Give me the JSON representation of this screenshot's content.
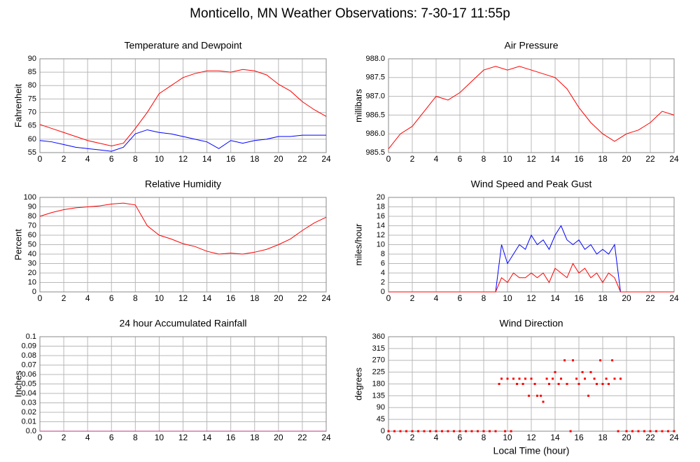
{
  "title": "Monticello, MN Weather Observations: 7-30-17 11:55p",
  "chart_data": [
    {
      "type": "line",
      "title": "Temperature and Dewpoint",
      "ylabel": "Fahrenheit",
      "x": [
        0,
        1,
        2,
        3,
        4,
        5,
        6,
        7,
        8,
        9,
        10,
        11,
        12,
        13,
        14,
        15,
        16,
        17,
        18,
        19,
        20,
        21,
        22,
        23,
        24
      ],
      "series": [
        {
          "color": "#ff0000",
          "values": [
            65.5,
            64,
            62.5,
            61,
            59.5,
            58.5,
            57.5,
            58.5,
            64,
            70,
            77,
            80,
            83,
            84.5,
            85.5,
            85.5,
            85,
            86,
            85.5,
            84,
            80.5,
            78,
            74,
            71,
            68.5
          ]
        },
        {
          "color": "#0000ff",
          "values": [
            59.5,
            59,
            58,
            57,
            56.5,
            56,
            55.5,
            57,
            62,
            63.5,
            62.5,
            62,
            61,
            60,
            59,
            56.5,
            59.5,
            58.5,
            59.5,
            60,
            61,
            61,
            61.5,
            61.5,
            61.5
          ]
        }
      ],
      "xlim": [
        0,
        24
      ],
      "xticks": [
        0,
        2,
        4,
        6,
        8,
        10,
        12,
        14,
        16,
        18,
        20,
        22,
        24
      ],
      "ylim": [
        55,
        90
      ],
      "yticks": [
        55,
        60,
        65,
        70,
        75,
        80,
        85,
        90
      ],
      "grid": true
    },
    {
      "type": "line",
      "title": "Air Pressure",
      "ylabel": "millibars",
      "x": [
        0,
        1,
        2,
        3,
        4,
        5,
        6,
        7,
        8,
        9,
        10,
        11,
        12,
        13,
        14,
        15,
        16,
        17,
        18,
        19,
        20,
        21,
        22,
        23,
        24
      ],
      "series": [
        {
          "color": "#ff0000",
          "values": [
            985.6,
            986.0,
            986.2,
            986.6,
            987.0,
            986.9,
            987.1,
            987.4,
            987.7,
            987.8,
            987.7,
            987.8,
            987.7,
            987.6,
            987.5,
            987.2,
            986.7,
            986.3,
            986.0,
            985.8,
            986.0,
            986.1,
            986.3,
            986.6,
            986.5
          ]
        }
      ],
      "xlim": [
        0,
        24
      ],
      "xticks": [
        0,
        2,
        4,
        6,
        8,
        10,
        12,
        14,
        16,
        18,
        20,
        22,
        24
      ],
      "ylim": [
        985.5,
        988
      ],
      "yticks": [
        985.5,
        {
          "value": 986,
          "label": "986.0"
        },
        986.5,
        {
          "value": 987,
          "label": "987.0"
        },
        987.5,
        {
          "value": 988,
          "label": "988.0"
        }
      ],
      "grid": true
    },
    {
      "type": "line",
      "title": "Relative Humidity",
      "ylabel": "Percent",
      "x": [
        0,
        1,
        2,
        3,
        4,
        5,
        6,
        7,
        8,
        9,
        10,
        11,
        12,
        13,
        14,
        15,
        16,
        17,
        18,
        19,
        20,
        21,
        22,
        23,
        24
      ],
      "series": [
        {
          "color": "#ff0000",
          "values": [
            80,
            84,
            87,
            89,
            90,
            91,
            93,
            94,
            92,
            70,
            60,
            56,
            51,
            48,
            43,
            40,
            41,
            40,
            42,
            45,
            50,
            56,
            65,
            73,
            79
          ]
        }
      ],
      "xlim": [
        0,
        24
      ],
      "xticks": [
        0,
        2,
        4,
        6,
        8,
        10,
        12,
        14,
        16,
        18,
        20,
        22,
        24
      ],
      "ylim": [
        0,
        100
      ],
      "yticks": [
        0,
        10,
        20,
        30,
        40,
        50,
        60,
        70,
        80,
        90,
        100
      ],
      "grid": true
    },
    {
      "type": "line",
      "title": "Wind Speed and Peak Gust",
      "ylabel": "miles/hour",
      "x": [
        0,
        9,
        9.5,
        10,
        10.5,
        11,
        11.5,
        12,
        12.5,
        13,
        13.5,
        14,
        14.5,
        15,
        15.5,
        16,
        16.5,
        17,
        17.5,
        18,
        18.5,
        19,
        19.5,
        20,
        24
      ],
      "series": [
        {
          "color": "#0000ff",
          "values": [
            0,
            0,
            10,
            6,
            8,
            10,
            9,
            12,
            10,
            11,
            9,
            12,
            14,
            11,
            10,
            11,
            9,
            10,
            8,
            9,
            8,
            10,
            0,
            0,
            0
          ]
        },
        {
          "color": "#ff0000",
          "values": [
            0,
            0,
            3,
            2,
            4,
            3,
            3,
            4,
            3,
            4,
            2,
            5,
            4,
            3,
            6,
            4,
            5,
            3,
            4,
            2,
            4,
            3,
            0,
            0,
            0
          ]
        }
      ],
      "xlim": [
        0,
        24
      ],
      "xticks": [
        0,
        2,
        4,
        6,
        8,
        10,
        12,
        14,
        16,
        18,
        20,
        22,
        24
      ],
      "ylim": [
        0,
        20
      ],
      "yticks": [
        0,
        2,
        4,
        6,
        8,
        10,
        12,
        14,
        16,
        18,
        20
      ],
      "grid": true
    },
    {
      "type": "line",
      "title": "24 hour Accumulated Rainfall",
      "ylabel": "Inches",
      "x": [
        0,
        24
      ],
      "series": [
        {
          "color": "#c03080",
          "values": [
            0,
            0
          ]
        }
      ],
      "xlim": [
        0,
        24
      ],
      "xticks": [
        0,
        2,
        4,
        6,
        8,
        10,
        12,
        14,
        16,
        18,
        20,
        22,
        24
      ],
      "ylim": [
        0,
        0.1
      ],
      "yticks": [
        {
          "value": 0,
          "label": "0.0"
        },
        0.01,
        0.02,
        0.03,
        0.04,
        0.05,
        0.06,
        0.07,
        0.08,
        0.09,
        0.1
      ],
      "grid": true
    },
    {
      "type": "scatter",
      "title": "Wind Direction",
      "ylabel": "degrees",
      "xlabel": "Local Time (hour)",
      "x": [
        0,
        0.5,
        1,
        1.5,
        2,
        2.5,
        3,
        3.5,
        4,
        4.5,
        5,
        5.5,
        6,
        6.5,
        7,
        7.5,
        8,
        8.5,
        9,
        9.3,
        9.5,
        9.8,
        10,
        10.3,
        10.5,
        10.8,
        11,
        11.3,
        11.5,
        11.8,
        12,
        12.3,
        12.5,
        12.8,
        13,
        13.3,
        13.5,
        13.8,
        14,
        14.3,
        14.5,
        14.8,
        15,
        15.3,
        15.5,
        15.8,
        16,
        16.3,
        16.5,
        16.8,
        17,
        17.3,
        17.5,
        17.8,
        18,
        18.3,
        18.5,
        18.8,
        19,
        19.3,
        19.5,
        20,
        20.5,
        21,
        21.5,
        22,
        22.5,
        23,
        23.5,
        24
      ],
      "series": [
        {
          "color": "#ff0000",
          "values": [
            0,
            0,
            0,
            0,
            0,
            0,
            0,
            0,
            0,
            0,
            0,
            0,
            0,
            0,
            0,
            0,
            0,
            0,
            0,
            180,
            200,
            0,
            200,
            0,
            200,
            180,
            200,
            180,
            200,
            135,
            200,
            180,
            135,
            135,
            112,
            200,
            180,
            200,
            225,
            180,
            200,
            270,
            180,
            0,
            270,
            200,
            180,
            225,
            200,
            135,
            225,
            200,
            180,
            270,
            180,
            200,
            180,
            270,
            200,
            0,
            200,
            0,
            0,
            0,
            0,
            0,
            0,
            0,
            0,
            0
          ]
        }
      ],
      "xlim": [
        0,
        24
      ],
      "xticks": [
        0,
        2,
        4,
        6,
        8,
        10,
        12,
        14,
        16,
        18,
        20,
        22,
        24
      ],
      "ylim": [
        0,
        360
      ],
      "yticks": [
        0,
        45,
        90,
        135,
        180,
        225,
        270,
        315,
        360
      ],
      "grid": true
    }
  ]
}
